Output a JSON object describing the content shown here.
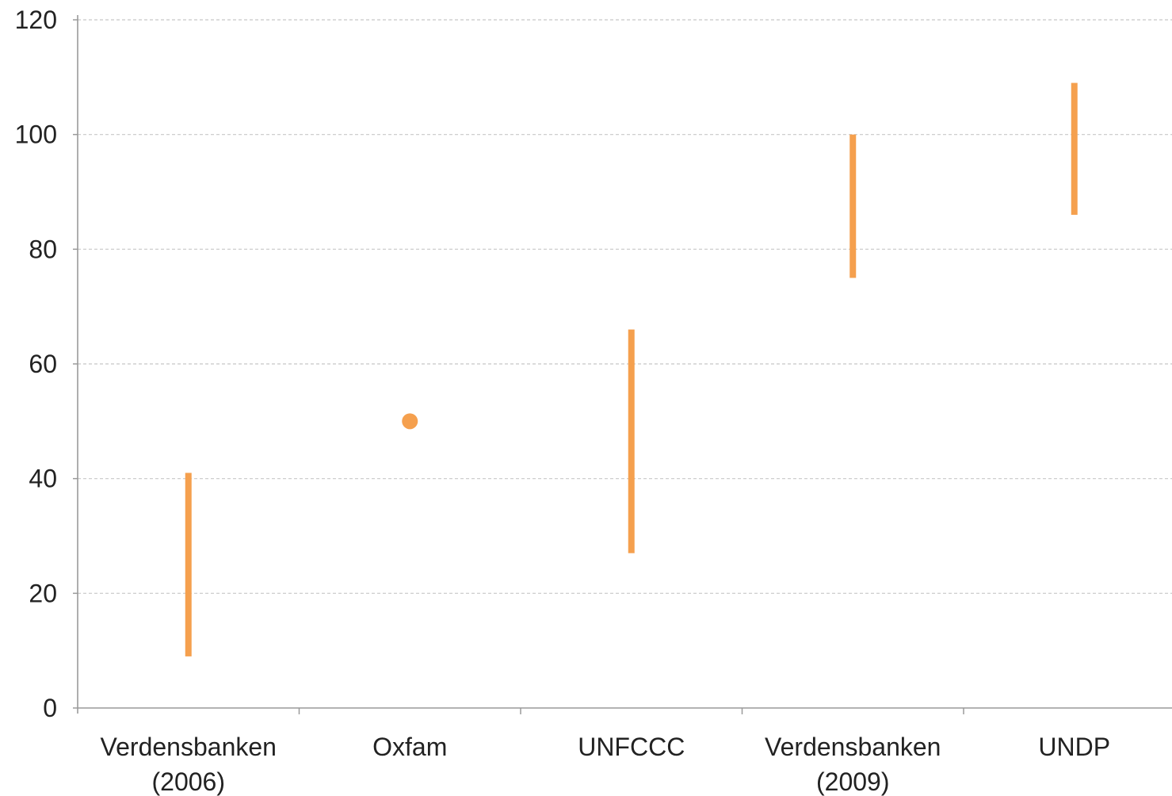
{
  "chart_data": {
    "type": "range",
    "title": "",
    "xlabel": "",
    "ylabel": "",
    "ylim": [
      0,
      120
    ],
    "yticks": [
      0,
      20,
      40,
      60,
      80,
      100,
      120
    ],
    "grid": true,
    "categories": [
      [
        "Verdensbanken",
        "(2006)"
      ],
      [
        "Oxfam"
      ],
      [
        "UNFCCC"
      ],
      [
        "Verdensbanken",
        "(2009)"
      ],
      [
        "UNDP"
      ]
    ],
    "ranges": [
      {
        "low": 9,
        "high": 41
      },
      {
        "low": 50,
        "high": 50
      },
      {
        "low": 27,
        "high": 66
      },
      {
        "low": 75,
        "high": 100
      },
      {
        "low": 86,
        "high": 109
      }
    ],
    "colors": {
      "mark": "#F5A04E",
      "grid": "#c8c8c8",
      "axis": "#9a9a9a",
      "text": "#222222"
    }
  }
}
